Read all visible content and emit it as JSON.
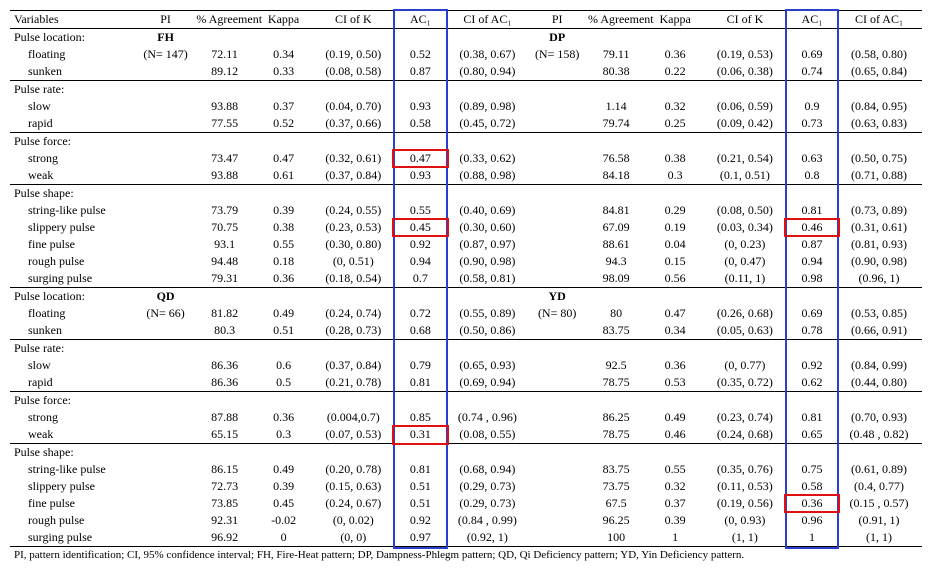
{
  "headers": {
    "variables": "Variables",
    "pi": "PI",
    "agreement": "% Agreement",
    "kappa": "Kappa",
    "ci_k": "CI of K",
    "ac1": "AC₁",
    "ci_ac1": "CI of AC₁"
  },
  "patterns": {
    "FH": {
      "label": "FH",
      "n": "(N= 147)"
    },
    "DP": {
      "label": "DP",
      "n": "(N= 158)"
    },
    "QD": {
      "label": "QD",
      "n": "(N= 66)"
    },
    "YD": {
      "label": "YD",
      "n": "(N= 80)"
    }
  },
  "group_labels": {
    "pulse_location": "Pulse location:",
    "pulse_rate": "Pulse rate:",
    "pulse_force": "Pulse force:",
    "pulse_shape": "Pulse shape:"
  },
  "row_labels": {
    "floating": "floating",
    "sunken": "sunken",
    "slow": "slow",
    "rapid": "rapid",
    "strong": "strong",
    "weak": "weak",
    "string": "string-like pulse",
    "slippery": "slippery pulse",
    "fine": "fine pulse",
    "rough": "rough pulse",
    "surging": "surging pulse"
  },
  "data": {
    "FH": {
      "floating": {
        "agr": "72.11",
        "kap": "0.34",
        "cik": "(0.19, 0.50)",
        "ac1": "0.52",
        "cia": "(0.38, 0.67)"
      },
      "sunken": {
        "agr": "89.12",
        "kap": "0.33",
        "cik": "(0.08, 0.58)",
        "ac1": "0.87",
        "cia": "(0.80, 0.94)"
      },
      "slow": {
        "agr": "93.88",
        "kap": "0.37",
        "cik": "(0.04, 0.70)",
        "ac1": "0.93",
        "cia": "(0.89, 0.98)"
      },
      "rapid": {
        "agr": "77.55",
        "kap": "0.52",
        "cik": "(0.37, 0.66)",
        "ac1": "0.58",
        "cia": "(0.45, 0.72)"
      },
      "strong": {
        "agr": "73.47",
        "kap": "0.47",
        "cik": "(0.32, 0.61)",
        "ac1": "0.47",
        "cia": "(0.33, 0.62)"
      },
      "weak": {
        "agr": "93.88",
        "kap": "0.61",
        "cik": "(0.37, 0.84)",
        "ac1": "0.93",
        "cia": "(0.88, 0.98)"
      },
      "string": {
        "agr": "73.79",
        "kap": "0.39",
        "cik": "(0.24, 0.55)",
        "ac1": "0.55",
        "cia": "(0.40, 0.69)"
      },
      "slippery": {
        "agr": "70.75",
        "kap": "0.38",
        "cik": "(0.23, 0.53)",
        "ac1": "0.45",
        "cia": "(0.30, 0.60)"
      },
      "fine": {
        "agr": "93.1",
        "kap": "0.55",
        "cik": "(0.30, 0.80)",
        "ac1": "0.92",
        "cia": "(0.87, 0.97)"
      },
      "rough": {
        "agr": "94.48",
        "kap": "0.18",
        "cik": "(0, 0.51)",
        "ac1": "0.94",
        "cia": "(0.90, 0.98)"
      },
      "surging": {
        "agr": "79.31",
        "kap": "0.36",
        "cik": "(0.18, 0.54)",
        "ac1": "0.7",
        "cia": "(0.58, 0.81)"
      }
    },
    "DP": {
      "floating": {
        "agr": "79.11",
        "kap": "0.36",
        "cik": "(0.19, 0.53)",
        "ac1": "0.69",
        "cia": "(0.58, 0.80)"
      },
      "sunken": {
        "agr": "80.38",
        "kap": "0.22",
        "cik": "(0.06, 0.38)",
        "ac1": "0.74",
        "cia": "(0.65, 0.84)"
      },
      "slow": {
        "agr": "1.14",
        "kap": "0.32",
        "cik": "(0.06, 0.59)",
        "ac1": "0.9",
        "cia": "(0.84, 0.95)"
      },
      "rapid": {
        "agr": "79.74",
        "kap": "0.25",
        "cik": "(0.09, 0.42)",
        "ac1": "0.73",
        "cia": "(0.63, 0.83)"
      },
      "strong": {
        "agr": "76.58",
        "kap": "0.38",
        "cik": "(0.21, 0.54)",
        "ac1": "0.63",
        "cia": "(0.50, 0.75)"
      },
      "weak": {
        "agr": "84.18",
        "kap": "0.3",
        "cik": "(0.1, 0.51)",
        "ac1": "0.8",
        "cia": "(0.71, 0.88)"
      },
      "string": {
        "agr": "84.81",
        "kap": "0.29",
        "cik": "(0.08, 0.50)",
        "ac1": "0.81",
        "cia": "(0.73, 0.89)"
      },
      "slippery": {
        "agr": "67.09",
        "kap": "0.19",
        "cik": "(0.03, 0.34)",
        "ac1": "0.46",
        "cia": "(0.31, 0.61)"
      },
      "fine": {
        "agr": "88.61",
        "kap": "0.04",
        "cik": "(0, 0.23)",
        "ac1": "0.87",
        "cia": "(0.81, 0.93)"
      },
      "rough": {
        "agr": "94.3",
        "kap": "0.15",
        "cik": "(0, 0.47)",
        "ac1": "0.94",
        "cia": "(0.90, 0.98)"
      },
      "surging": {
        "agr": "98.09",
        "kap": "0.56",
        "cik": "(0.11, 1)",
        "ac1": "0.98",
        "cia": "(0.96, 1)"
      }
    },
    "QD": {
      "floating": {
        "agr": "81.82",
        "kap": "0.49",
        "cik": "(0.24, 0.74)",
        "ac1": "0.72",
        "cia": "(0.55, 0.89)"
      },
      "sunken": {
        "agr": "80.3",
        "kap": "0.51",
        "cik": "(0.28, 0.73)",
        "ac1": "0.68",
        "cia": "(0.50, 0.86)"
      },
      "slow": {
        "agr": "86.36",
        "kap": "0.6",
        "cik": "(0.37, 0.84)",
        "ac1": "0.79",
        "cia": "(0.65, 0.93)"
      },
      "rapid": {
        "agr": "86.36",
        "kap": "0.5",
        "cik": "(0.21, 0.78)",
        "ac1": "0.81",
        "cia": "(0.69, 0.94)"
      },
      "strong": {
        "agr": "87.88",
        "kap": "0.36",
        "cik": "(0.004,0.7)",
        "ac1": "0.85",
        "cia": "(0.74 , 0.96)"
      },
      "weak": {
        "agr": "65.15",
        "kap": "0.3",
        "cik": "(0.07, 0.53)",
        "ac1": "0.31",
        "cia": "(0.08, 0.55)"
      },
      "string": {
        "agr": "86.15",
        "kap": "0.49",
        "cik": "(0.20, 0.78)",
        "ac1": "0.81",
        "cia": "(0.68, 0.94)"
      },
      "slippery": {
        "agr": "72.73",
        "kap": "0.39",
        "cik": "(0.15, 0.63)",
        "ac1": "0.51",
        "cia": "(0.29, 0.73)"
      },
      "fine": {
        "agr": "73.85",
        "kap": "0.45",
        "cik": "(0.24, 0.67)",
        "ac1": "0.51",
        "cia": "(0.29, 0.73)"
      },
      "rough": {
        "agr": "92.31",
        "kap": "-0.02",
        "cik": "(0, 0.02)",
        "ac1": "0.92",
        "cia": "(0.84 , 0.99)"
      },
      "surging": {
        "agr": "96.92",
        "kap": "0",
        "cik": "(0, 0)",
        "ac1": "0.97",
        "cia": "(0.92, 1)"
      }
    },
    "YD": {
      "floating": {
        "agr": "80",
        "kap": "0.47",
        "cik": "(0.26, 0.68)",
        "ac1": "0.69",
        "cia": "(0.53, 0.85)"
      },
      "sunken": {
        "agr": "83.75",
        "kap": "0.34",
        "cik": "(0.05, 0.63)",
        "ac1": "0.78",
        "cia": "(0.66, 0.91)"
      },
      "slow": {
        "agr": "92.5",
        "kap": "0.36",
        "cik": "(0, 0.77)",
        "ac1": "0.92",
        "cia": "(0.84, 0.99)"
      },
      "rapid": {
        "agr": "78.75",
        "kap": "0.53",
        "cik": "(0.35, 0.72)",
        "ac1": "0.62",
        "cia": "(0.44, 0.80)"
      },
      "strong": {
        "agr": "86.25",
        "kap": "0.49",
        "cik": "(0.23, 0.74)",
        "ac1": "0.81",
        "cia": "(0.70, 0.93)"
      },
      "weak": {
        "agr": "78.75",
        "kap": "0.46",
        "cik": "(0.24, 0.68)",
        "ac1": "0.65",
        "cia": "(0.48 , 0.82)"
      },
      "string": {
        "agr": "83.75",
        "kap": "0.55",
        "cik": "(0.35, 0.76)",
        "ac1": "0.75",
        "cia": "(0.61, 0.89)"
      },
      "slippery": {
        "agr": "73.75",
        "kap": "0.32",
        "cik": "(0.11, 0.53)",
        "ac1": "0.58",
        "cia": "(0.4, 0.77)"
      },
      "fine": {
        "agr": "67.5",
        "kap": "0.37",
        "cik": "(0.19, 0.56)",
        "ac1": "0.36",
        "cia": "(0.15 , 0.57)"
      },
      "rough": {
        "agr": "96.25",
        "kap": "0.39",
        "cik": "(0, 0.93)",
        "ac1": "0.96",
        "cia": "(0.91, 1)"
      },
      "surging": {
        "agr": "100",
        "kap": "1",
        "cik": "(1, 1)",
        "ac1": "1",
        "cia": "(1, 1)"
      }
    }
  },
  "footnote": "PI, pattern identification; CI, 95% confidence interval; FH, Fire-Heat pattern; DP, Dampness-Phlegm pattern; QD, Qi Deficiency pattern; YD, Yin Deficiency pattern.",
  "highlight": {
    "blue_box_color": "#2a3fcf",
    "red_box_color": "#e01010"
  }
}
